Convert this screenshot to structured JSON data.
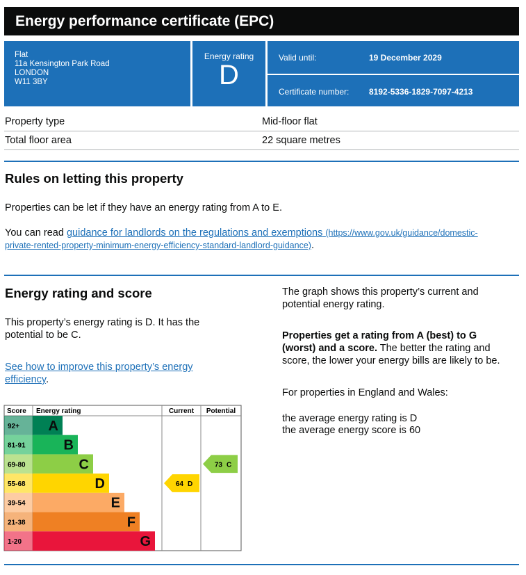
{
  "header": {
    "title": "Energy performance certificate (EPC)"
  },
  "address": [
    "Flat",
    "11a Kensington Park Road",
    "LONDON",
    "W11 3BY"
  ],
  "energy_rating": {
    "label": "Energy rating",
    "value": "D"
  },
  "valid_until": {
    "label": "Valid until:",
    "value": "19 December 2029"
  },
  "certificate_number": {
    "label": "Certificate number:",
    "value": "8192-5336-1829-7097-4213"
  },
  "property": {
    "rows": [
      [
        "Property type",
        "Mid-floor flat"
      ],
      [
        "Total floor area",
        "22 square metres"
      ]
    ]
  },
  "letting": {
    "heading": "Rules on letting this property",
    "text": "Properties can be let if they have an energy rating from A to E.",
    "guidance_prefix": "You can read ",
    "link_text": "guidance for landlords on the regulations and exemptions",
    "link_url": "(https://www.gov.uk/guidance/domestic-private-rented-property-minimum-energy-efficiency-standard-landlord-guidance)",
    "suffix": "."
  },
  "rating_section": {
    "heading": "Energy rating and score",
    "text": "This property’s energy rating is D. It has the potential to be C.",
    "improve_link": "See how to improve this property’s energy efficiency",
    "improve_suffix": ".",
    "graph_note": "The graph shows this property’s current and potential energy rating.",
    "bold_text": "Properties get a rating from A (best) to G (worst) and a score.",
    "rest_text": " The better the rating and score, the lower your energy bills are likely to be.",
    "region_text": "For properties in England and Wales:",
    "average_rating": "the average energy rating is D",
    "average_score": "the average energy score is 60"
  },
  "epc_graph": {
    "headers": [
      "Score",
      "Energy rating",
      "Current",
      "Potential"
    ],
    "bands": [
      {
        "score": "92+",
        "letter": "A",
        "color": "#008054"
      },
      {
        "score": "81-91",
        "letter": "B",
        "color": "#19b459"
      },
      {
        "score": "69-80",
        "letter": "C",
        "color": "#8dce46"
      },
      {
        "score": "55-68",
        "letter": "D",
        "color": "#ffd500"
      },
      {
        "score": "39-54",
        "letter": "E",
        "color": "#fcaa65"
      },
      {
        "score": "21-38",
        "letter": "F",
        "color": "#ef8023"
      },
      {
        "score": "1-20",
        "letter": "G",
        "color": "#e9153b"
      }
    ],
    "current": {
      "score": 64,
      "letter": "D"
    },
    "potential": {
      "score": 73,
      "letter": "C"
    }
  }
}
